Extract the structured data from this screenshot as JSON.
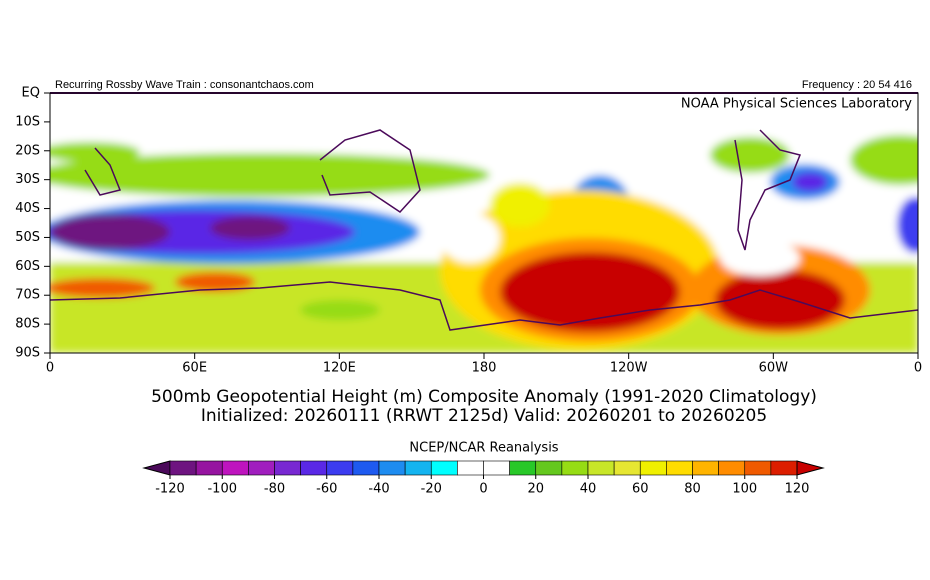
{
  "header": {
    "left": "Recurring Rossby Wave Train : consonantchaos.com",
    "right": "Frequency : 20 54 416",
    "lab": "NOAA Physical Sciences Laboratory"
  },
  "map": {
    "lat_labels": [
      "EQ",
      "10S",
      "20S",
      "30S",
      "40S",
      "50S",
      "60S",
      "70S",
      "80S",
      "90S"
    ],
    "lon_labels": [
      "0",
      "60E",
      "120E",
      "180",
      "120W",
      "60W",
      "0"
    ]
  },
  "title": {
    "line1": "500mb Geopotential Height (m) Composite Anomaly (1991-2020 Climatology)",
    "line2": "Initialized: 20260111 (RRWT 2125d) Valid: 20260201 to 20260205"
  },
  "colorbar": {
    "label": "NCEP/NCAR Reanalysis",
    "ticks": [
      -120,
      -100,
      -80,
      -60,
      -40,
      -20,
      0,
      20,
      40,
      60,
      80,
      100,
      120
    ],
    "lim": [
      -120,
      120
    ],
    "colors": [
      "#4b0a5a",
      "#6e1480",
      "#9614a0",
      "#be14be",
      "#a01ebe",
      "#7828d2",
      "#5a28e6",
      "#3c3cf0",
      "#1e5af0",
      "#1e8cf0",
      "#14b4f0",
      "#00ffff",
      "#ffffff",
      "#ffffff",
      "#28c828",
      "#64c81e",
      "#96dc14",
      "#c8e628",
      "#e6e632",
      "#f0f000",
      "#ffdc00",
      "#ffb400",
      "#ff8c00",
      "#f05a00",
      "#dc1e00",
      "#c80000"
    ]
  }
}
